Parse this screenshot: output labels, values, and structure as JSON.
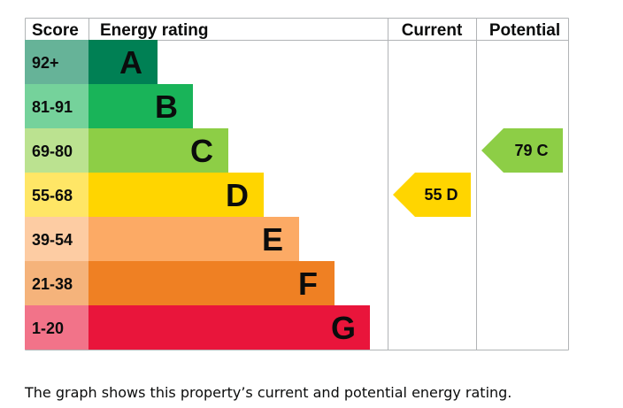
{
  "chart_data": {
    "type": "bar",
    "headers": {
      "score": "Score",
      "rating": "Energy rating",
      "current": "Current",
      "potential": "Potential"
    },
    "bands": [
      {
        "letter": "A",
        "range": "92+",
        "color": "#008054",
        "score_color": "#66b398"
      },
      {
        "letter": "B",
        "range": "81-91",
        "color": "#19b459",
        "score_color": "#75d29b"
      },
      {
        "letter": "C",
        "range": "69-80",
        "color": "#8dce46",
        "score_color": "#bbe290"
      },
      {
        "letter": "D",
        "range": "55-68",
        "color": "#ffd500",
        "score_color": "#ffe666"
      },
      {
        "letter": "E",
        "range": "39-54",
        "color": "#fcaa65",
        "score_color": "#fdcca3"
      },
      {
        "letter": "F",
        "range": "21-38",
        "color": "#ef8023",
        "score_color": "#f5b37b"
      },
      {
        "letter": "G",
        "range": "1-20",
        "color": "#e9153b",
        "score_color": "#f27389"
      }
    ],
    "current": {
      "value": 55,
      "band": "D",
      "label": "55 D",
      "color": "#ffd500"
    },
    "potential": {
      "value": 79,
      "band": "C",
      "label": "79 C",
      "color": "#8dce46"
    }
  },
  "caption": "The graph shows this property’s current and potential energy rating."
}
